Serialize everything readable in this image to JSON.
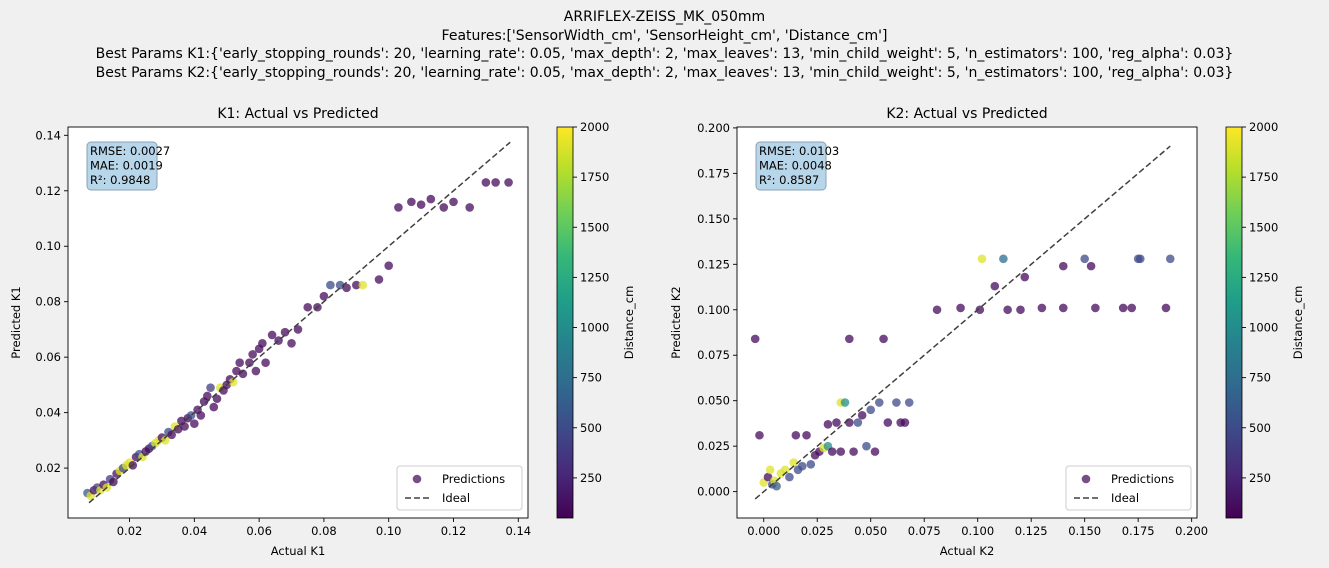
{
  "figure": {
    "title_lines": [
      "ARRIFLEX-ZEISS_MK_050mm",
      "Features:['SensorWidth_cm', 'SensorHeight_cm', 'Distance_cm']",
      "Best Params K1:{'early_stopping_rounds': 20, 'learning_rate': 0.05, 'max_depth': 2, 'max_leaves': 13, 'min_child_weight': 5, 'n_estimators': 100, 'reg_alpha': 0.03}",
      "Best Params K2:{'early_stopping_rounds': 20, 'learning_rate': 0.05, 'max_depth': 2, 'max_leaves': 13, 'min_child_weight': 5, 'n_estimators': 100, 'reg_alpha': 0.03}"
    ]
  },
  "colors": {
    "viridis": [
      "#440154",
      "#482878",
      "#3e4989",
      "#31688e",
      "#26828e",
      "#1f9e89",
      "#35b779",
      "#6ece58",
      "#b5de2b",
      "#fde725"
    ],
    "ideal_line": "#404040",
    "stats_box_fill": "#b8d6ea",
    "stats_box_stroke": "#8aa3b5",
    "legend_marker": "#6a3a78"
  },
  "chart_data": [
    {
      "type": "scatter",
      "title": "K1: Actual vs Predicted",
      "xlabel": "Actual K1",
      "ylabel": "Predicted K1",
      "xlim": [
        0.001,
        0.143
      ],
      "ylim": [
        0.002,
        0.143
      ],
      "xticks": [
        0.02,
        0.04,
        0.06,
        0.08,
        0.1,
        0.12,
        0.14
      ],
      "xtick_labels": [
        "0.02",
        "0.04",
        "0.06",
        "0.08",
        "0.10",
        "0.12",
        "0.14"
      ],
      "yticks": [
        0.02,
        0.04,
        0.06,
        0.08,
        0.1,
        0.12,
        0.14
      ],
      "ytick_labels": [
        "0.02",
        "0.04",
        "0.06",
        "0.08",
        "0.10",
        "0.12",
        "0.14"
      ],
      "stats": [
        "RMSE: 0.0027",
        "MAE: 0.0019",
        "R²: 0.9848"
      ],
      "legend": [
        "Predictions",
        "Ideal"
      ],
      "legend_position": "lower-right",
      "ideal": [
        [
          0.0075,
          0.0075
        ],
        [
          0.1375,
          0.1375
        ]
      ],
      "colorbar": {
        "label": "Distance_cm",
        "range": [
          50,
          2000
        ],
        "ticks": [
          250,
          500,
          750,
          1000,
          1250,
          1500,
          1750,
          2000
        ],
        "tick_labels": [
          "250",
          "500",
          "750",
          "1000",
          "1250",
          "1500",
          "1750",
          "2000"
        ]
      },
      "points": [
        [
          0.007,
          0.011,
          600
        ],
        [
          0.008,
          0.01,
          1900
        ],
        [
          0.009,
          0.012,
          100
        ],
        [
          0.01,
          0.013,
          400
        ],
        [
          0.011,
          0.012,
          1900
        ],
        [
          0.012,
          0.014,
          100
        ],
        [
          0.013,
          0.013,
          1900
        ],
        [
          0.014,
          0.016,
          400
        ],
        [
          0.015,
          0.015,
          100
        ],
        [
          0.016,
          0.018,
          100
        ],
        [
          0.017,
          0.019,
          1900
        ],
        [
          0.018,
          0.02,
          500
        ],
        [
          0.019,
          0.021,
          1900
        ],
        [
          0.02,
          0.022,
          1900
        ],
        [
          0.021,
          0.021,
          100
        ],
        [
          0.022,
          0.024,
          100
        ],
        [
          0.023,
          0.025,
          500
        ],
        [
          0.024,
          0.024,
          1900
        ],
        [
          0.025,
          0.026,
          100
        ],
        [
          0.026,
          0.027,
          100
        ],
        [
          0.027,
          0.028,
          500
        ],
        [
          0.028,
          0.029,
          1900
        ],
        [
          0.029,
          0.03,
          1900
        ],
        [
          0.03,
          0.031,
          100
        ],
        [
          0.031,
          0.03,
          1900
        ],
        [
          0.032,
          0.033,
          500
        ],
        [
          0.033,
          0.032,
          100
        ],
        [
          0.034,
          0.035,
          1900
        ],
        [
          0.035,
          0.034,
          100
        ],
        [
          0.036,
          0.037,
          100
        ],
        [
          0.037,
          0.035,
          100
        ],
        [
          0.038,
          0.038,
          100
        ],
        [
          0.039,
          0.039,
          500
        ],
        [
          0.04,
          0.036,
          100
        ],
        [
          0.041,
          0.041,
          100
        ],
        [
          0.042,
          0.039,
          100
        ],
        [
          0.043,
          0.044,
          100
        ],
        [
          0.044,
          0.046,
          100
        ],
        [
          0.045,
          0.049,
          400
        ],
        [
          0.046,
          0.042,
          100
        ],
        [
          0.047,
          0.045,
          100
        ],
        [
          0.048,
          0.049,
          1900
        ],
        [
          0.049,
          0.048,
          100
        ],
        [
          0.05,
          0.05,
          100
        ],
        [
          0.051,
          0.052,
          100
        ],
        [
          0.052,
          0.051,
          1900
        ],
        [
          0.053,
          0.055,
          100
        ],
        [
          0.054,
          0.058,
          100
        ],
        [
          0.055,
          0.054,
          100
        ],
        [
          0.057,
          0.058,
          100
        ],
        [
          0.058,
          0.061,
          100
        ],
        [
          0.059,
          0.055,
          100
        ],
        [
          0.06,
          0.063,
          100
        ],
        [
          0.061,
          0.065,
          100
        ],
        [
          0.062,
          0.058,
          100
        ],
        [
          0.064,
          0.068,
          100
        ],
        [
          0.066,
          0.066,
          100
        ],
        [
          0.068,
          0.069,
          100
        ],
        [
          0.07,
          0.065,
          100
        ],
        [
          0.072,
          0.07,
          100
        ],
        [
          0.075,
          0.078,
          100
        ],
        [
          0.078,
          0.078,
          100
        ],
        [
          0.08,
          0.082,
          100
        ],
        [
          0.082,
          0.086,
          500
        ],
        [
          0.085,
          0.086,
          500
        ],
        [
          0.087,
          0.085,
          100
        ],
        [
          0.09,
          0.086,
          100
        ],
        [
          0.092,
          0.086,
          1900
        ],
        [
          0.097,
          0.088,
          100
        ],
        [
          0.1,
          0.093,
          100
        ],
        [
          0.103,
          0.114,
          100
        ],
        [
          0.107,
          0.116,
          100
        ],
        [
          0.11,
          0.115,
          100
        ],
        [
          0.113,
          0.117,
          100
        ],
        [
          0.117,
          0.114,
          100
        ],
        [
          0.12,
          0.116,
          100
        ],
        [
          0.125,
          0.114,
          100
        ],
        [
          0.13,
          0.123,
          100
        ],
        [
          0.133,
          0.123,
          100
        ],
        [
          0.137,
          0.123,
          100
        ]
      ]
    },
    {
      "type": "scatter",
      "title": "K2: Actual vs Predicted",
      "xlabel": "Actual K2",
      "ylabel": "Predicted K2",
      "xlim": [
        -0.0125,
        0.2025
      ],
      "ylim": [
        -0.0145,
        0.2005
      ],
      "xticks": [
        0.0,
        0.025,
        0.05,
        0.075,
        0.1,
        0.125,
        0.15,
        0.175,
        0.2
      ],
      "xtick_labels": [
        "0.000",
        "0.025",
        "0.050",
        "0.075",
        "0.100",
        "0.125",
        "0.150",
        "0.175",
        "0.200"
      ],
      "yticks": [
        0.0,
        0.025,
        0.05,
        0.075,
        0.1,
        0.125,
        0.15,
        0.175,
        0.2
      ],
      "ytick_labels": [
        "0.000",
        "0.025",
        "0.050",
        "0.075",
        "0.100",
        "0.125",
        "0.150",
        "0.175",
        "0.200"
      ],
      "stats": [
        "RMSE: 0.0103",
        "MAE: 0.0048",
        "R²: 0.8587"
      ],
      "legend": [
        "Predictions",
        "Ideal"
      ],
      "legend_position": "lower-right",
      "ideal": [
        [
          -0.004,
          -0.004
        ],
        [
          0.19,
          0.19
        ]
      ],
      "colorbar": {
        "label": "Distance_cm",
        "range": [
          50,
          2000
        ],
        "ticks": [
          250,
          500,
          750,
          1000,
          1250,
          1500,
          1750,
          2000
        ],
        "tick_labels": [
          "250",
          "500",
          "750",
          "1000",
          "1250",
          "1500",
          "1750",
          "2000"
        ]
      },
      "points": [
        [
          -0.004,
          0.084,
          100
        ],
        [
          -0.002,
          0.031,
          100
        ],
        [
          0.0,
          0.005,
          1900
        ],
        [
          0.002,
          0.008,
          100
        ],
        [
          0.003,
          0.012,
          1900
        ],
        [
          0.004,
          0.004,
          500
        ],
        [
          0.005,
          0.006,
          1900
        ],
        [
          0.006,
          0.003,
          600
        ],
        [
          0.008,
          0.01,
          1900
        ],
        [
          0.01,
          0.012,
          1900
        ],
        [
          0.012,
          0.008,
          500
        ],
        [
          0.014,
          0.016,
          1900
        ],
        [
          0.015,
          0.031,
          100
        ],
        [
          0.016,
          0.012,
          500
        ],
        [
          0.018,
          0.014,
          500
        ],
        [
          0.02,
          0.031,
          100
        ],
        [
          0.022,
          0.015,
          500
        ],
        [
          0.024,
          0.02,
          100
        ],
        [
          0.026,
          0.022,
          100
        ],
        [
          0.028,
          0.024,
          1900
        ],
        [
          0.03,
          0.025,
          1000
        ],
        [
          0.03,
          0.037,
          100
        ],
        [
          0.032,
          0.022,
          100
        ],
        [
          0.034,
          0.038,
          100
        ],
        [
          0.036,
          0.049,
          1900
        ],
        [
          0.036,
          0.022,
          100
        ],
        [
          0.038,
          0.049,
          1000
        ],
        [
          0.04,
          0.038,
          100
        ],
        [
          0.04,
          0.084,
          100
        ],
        [
          0.042,
          0.022,
          100
        ],
        [
          0.044,
          0.038,
          500
        ],
        [
          0.046,
          0.042,
          100
        ],
        [
          0.048,
          0.025,
          500
        ],
        [
          0.05,
          0.045,
          500
        ],
        [
          0.052,
          0.022,
          100
        ],
        [
          0.054,
          0.049,
          500
        ],
        [
          0.056,
          0.084,
          100
        ],
        [
          0.058,
          0.038,
          100
        ],
        [
          0.062,
          0.049,
          500
        ],
        [
          0.064,
          0.038,
          100
        ],
        [
          0.066,
          0.038,
          100
        ],
        [
          0.068,
          0.049,
          500
        ],
        [
          0.081,
          0.1,
          100
        ],
        [
          0.092,
          0.101,
          100
        ],
        [
          0.101,
          0.1,
          100
        ],
        [
          0.102,
          0.128,
          1900
        ],
        [
          0.108,
          0.113,
          100
        ],
        [
          0.112,
          0.128,
          750
        ],
        [
          0.114,
          0.1,
          100
        ],
        [
          0.12,
          0.1,
          100
        ],
        [
          0.122,
          0.118,
          100
        ],
        [
          0.13,
          0.101,
          100
        ],
        [
          0.14,
          0.101,
          100
        ],
        [
          0.14,
          0.124,
          100
        ],
        [
          0.15,
          0.128,
          500
        ],
        [
          0.153,
          0.124,
          100
        ],
        [
          0.155,
          0.101,
          100
        ],
        [
          0.168,
          0.101,
          100
        ],
        [
          0.172,
          0.101,
          100
        ],
        [
          0.175,
          0.128,
          500
        ],
        [
          0.176,
          0.128,
          500
        ],
        [
          0.188,
          0.101,
          100
        ],
        [
          0.19,
          0.128,
          500
        ]
      ]
    }
  ]
}
